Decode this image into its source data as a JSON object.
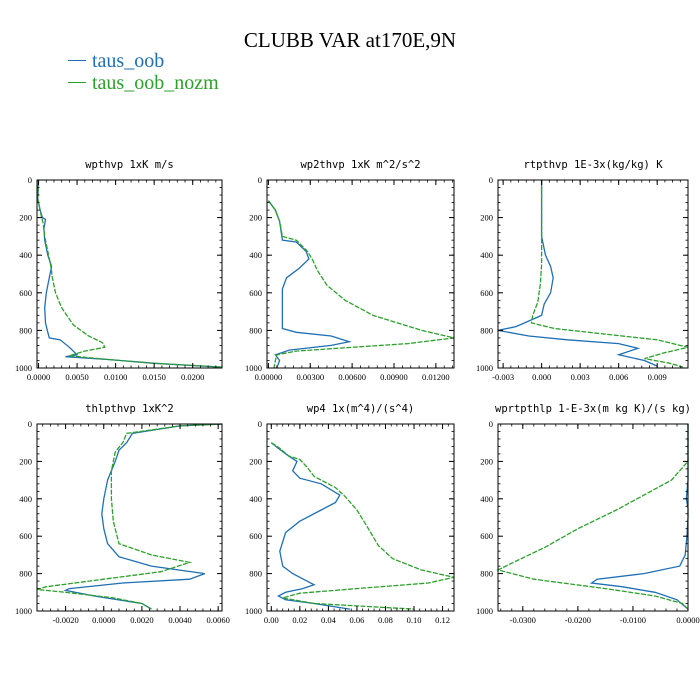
{
  "title": "CLUBB VAR at170E,9N",
  "legend": [
    {
      "label": "taus_oob",
      "color": "#1f6fb4"
    },
    {
      "label": "taus_oob_nozm",
      "color": "#2ca02c"
    }
  ],
  "chart_data": [
    {
      "type": "line",
      "title": "wpthvp   1xK m/s",
      "xlim": [
        -0.0002,
        0.0238
      ],
      "ylim": [
        1000,
        0
      ],
      "xticks": [
        "0.0000",
        "0.0050",
        "0.0100",
        "0.0150",
        "0.0200"
      ],
      "xtick_values": [
        0,
        0.005,
        0.01,
        0.015,
        0.02
      ],
      "yticks": [
        "0",
        "200",
        "400",
        "600",
        "800",
        "1000"
      ],
      "series": [
        {
          "name": "taus_oob",
          "points": [
            [
              0.0,
              0
            ],
            [
              -0.0001,
              100
            ],
            [
              0.0002,
              160
            ],
            [
              0.0005,
              200
            ],
            [
              0.0009,
              210
            ],
            [
              0.0007,
              260
            ],
            [
              0.0008,
              320
            ],
            [
              0.0012,
              400
            ],
            [
              0.0017,
              460
            ],
            [
              0.0014,
              520
            ],
            [
              0.001,
              600
            ],
            [
              0.0008,
              680
            ],
            [
              0.0009,
              760
            ],
            [
              0.0012,
              810
            ],
            [
              0.0014,
              840
            ],
            [
              0.0028,
              850
            ],
            [
              0.004,
              890
            ],
            [
              0.005,
              930
            ],
            [
              0.0035,
              940
            ],
            [
              0.009,
              955
            ],
            [
              0.015,
              975
            ],
            [
              0.0238,
              995
            ]
          ]
        },
        {
          "name": "taus_oob_nozm",
          "points": [
            [
              0.0,
              0
            ],
            [
              -0.0001,
              100
            ],
            [
              0.0002,
              160
            ],
            [
              0.0004,
              200
            ],
            [
              0.0006,
              230
            ],
            [
              0.0008,
              300
            ],
            [
              0.0013,
              400
            ],
            [
              0.0016,
              460
            ],
            [
              0.0018,
              520
            ],
            [
              0.0022,
              600
            ],
            [
              0.003,
              680
            ],
            [
              0.0045,
              770
            ],
            [
              0.0065,
              830
            ],
            [
              0.0083,
              865
            ],
            [
              0.0086,
              890
            ],
            [
              0.006,
              910
            ],
            [
              0.004,
              935
            ],
            [
              0.009,
              955
            ],
            [
              0.015,
              975
            ],
            [
              0.0238,
              995
            ]
          ]
        }
      ]
    },
    {
      "type": "line",
      "title": "wp2thvp   1xK m^2/s^2",
      "xlim": [
        -0.0001,
        0.0133
      ],
      "ylim": [
        1000,
        0
      ],
      "xticks": [
        "0.00000",
        "0.00300",
        "0.00600",
        "0.00900",
        "0.01200"
      ],
      "xtick_values": [
        0,
        0.003,
        0.006,
        0.009,
        0.012
      ],
      "yticks": [
        "0",
        "200",
        "400",
        "600",
        "800",
        "1000"
      ],
      "series": [
        {
          "name": "taus_oob",
          "points": [
            [
              0.0,
              110
            ],
            [
              0.0005,
              160
            ],
            [
              0.0008,
              220
            ],
            [
              0.001,
              320
            ],
            [
              0.002,
              330
            ],
            [
              0.0027,
              380
            ],
            [
              0.0029,
              420
            ],
            [
              0.0022,
              470
            ],
            [
              0.0013,
              520
            ],
            [
              0.001,
              580
            ],
            [
              0.001,
              700
            ],
            [
              0.001,
              790
            ],
            [
              0.002,
              810
            ],
            [
              0.0045,
              830
            ],
            [
              0.0058,
              860
            ],
            [
              0.0045,
              880
            ],
            [
              0.0015,
              905
            ],
            [
              0.0005,
              930
            ],
            [
              0.0008,
              960
            ],
            [
              0.0006,
              1000
            ]
          ]
        },
        {
          "name": "taus_oob_nozm",
          "points": [
            [
              0.0,
              110
            ],
            [
              0.0005,
              160
            ],
            [
              0.0008,
              220
            ],
            [
              0.001,
              300
            ],
            [
              0.002,
              320
            ],
            [
              0.0028,
              380
            ],
            [
              0.0032,
              430
            ],
            [
              0.0035,
              480
            ],
            [
              0.0042,
              560
            ],
            [
              0.0055,
              640
            ],
            [
              0.0075,
              720
            ],
            [
              0.011,
              800
            ],
            [
              0.0133,
              840
            ],
            [
              0.01,
              870
            ],
            [
              0.006,
              890
            ],
            [
              0.002,
              910
            ],
            [
              0.0006,
              930
            ],
            [
              0.0005,
              960
            ],
            [
              0.0004,
              1000
            ]
          ]
        }
      ]
    },
    {
      "type": "line",
      "title": "rtpthvp   1E-3x(kg/kg) K",
      "xlim": [
        -0.0034,
        0.0114
      ],
      "ylim": [
        1000,
        0
      ],
      "xticks": [
        "-0.003",
        "0.000",
        "0.003",
        "0.006",
        "0.009"
      ],
      "xtick_values": [
        -0.003,
        0,
        0.003,
        0.006,
        0.009
      ],
      "yticks": [
        "0",
        "200",
        "400",
        "600",
        "800",
        "1000"
      ],
      "series": [
        {
          "name": "taus_oob",
          "points": [
            [
              0.0,
              0
            ],
            [
              0.0,
              300
            ],
            [
              0.0003,
              400
            ],
            [
              0.0007,
              460
            ],
            [
              0.0009,
              520
            ],
            [
              0.0007,
              600
            ],
            [
              0.0002,
              660
            ],
            [
              0.0,
              720
            ],
            [
              -0.002,
              780
            ],
            [
              -0.0034,
              800
            ],
            [
              -0.001,
              830
            ],
            [
              0.002,
              850
            ],
            [
              0.006,
              870
            ],
            [
              0.0075,
              895
            ],
            [
              0.006,
              930
            ],
            [
              0.008,
              960
            ],
            [
              0.009,
              990
            ]
          ]
        },
        {
          "name": "taus_oob_nozm",
          "points": [
            [
              0.0,
              0
            ],
            [
              0.0,
              300
            ],
            [
              0.0,
              450
            ],
            [
              -0.0001,
              550
            ],
            [
              -0.0003,
              650
            ],
            [
              -0.0007,
              720
            ],
            [
              -0.0008,
              760
            ],
            [
              0.001,
              790
            ],
            [
              0.005,
              820
            ],
            [
              0.009,
              850
            ],
            [
              0.0114,
              890
            ],
            [
              0.0095,
              920
            ],
            [
              0.008,
              950
            ],
            [
              0.01,
              975
            ],
            [
              0.011,
              995
            ]
          ]
        }
      ]
    },
    {
      "type": "line",
      "title": "thlpthvp   1xK^2",
      "xlim": [
        -0.0035,
        0.0062
      ],
      "ylim": [
        1000,
        0
      ],
      "xticks": [
        "-0.0020",
        "0.0000",
        "0.0020",
        "0.0040",
        "0.0060"
      ],
      "xtick_values": [
        -0.002,
        0,
        0.002,
        0.004,
        0.006
      ],
      "yticks": [
        "0",
        "200",
        "400",
        "600",
        "800",
        "1000"
      ],
      "series": [
        {
          "name": "taus_oob",
          "points": [
            [
              0.0062,
              0
            ],
            [
              0.004,
              10
            ],
            [
              0.0015,
              50
            ],
            [
              0.0012,
              100
            ],
            [
              0.0008,
              140
            ],
            [
              0.0006,
              200
            ],
            [
              0.0002,
              300
            ],
            [
              0.0,
              400
            ],
            [
              -0.0001,
              480
            ],
            [
              0.0,
              560
            ],
            [
              0.0002,
              640
            ],
            [
              0.0008,
              710
            ],
            [
              0.0025,
              760
            ],
            [
              0.0053,
              800
            ],
            [
              0.0045,
              830
            ],
            [
              0.001,
              850
            ],
            [
              -0.0018,
              880
            ],
            [
              -0.002,
              890
            ],
            [
              -0.0005,
              920
            ],
            [
              0.002,
              960
            ],
            [
              0.0025,
              990
            ]
          ]
        },
        {
          "name": "taus_oob_nozm",
          "points": [
            [
              0.0062,
              0
            ],
            [
              0.004,
              10
            ],
            [
              0.0012,
              50
            ],
            [
              0.001,
              100
            ],
            [
              0.0006,
              150
            ],
            [
              0.0004,
              250
            ],
            [
              0.0004,
              400
            ],
            [
              0.0005,
              520
            ],
            [
              0.0008,
              640
            ],
            [
              0.0025,
              700
            ],
            [
              0.0045,
              740
            ],
            [
              0.003,
              790
            ],
            [
              0.0,
              830
            ],
            [
              -0.003,
              870
            ],
            [
              -0.0035,
              885
            ],
            [
              -0.002,
              900
            ],
            [
              0.0005,
              930
            ],
            [
              0.002,
              960
            ],
            [
              0.0025,
              990
            ]
          ]
        }
      ]
    },
    {
      "type": "line",
      "title": "wp4   1x(m^4)/(s^4)",
      "xlim": [
        -0.003,
        0.128
      ],
      "ylim": [
        1000,
        0
      ],
      "xticks": [
        "0.00",
        "0.02",
        "0.04",
        "0.06",
        "0.08",
        "0.10",
        "0.12"
      ],
      "xtick_values": [
        0,
        0.02,
        0.04,
        0.06,
        0.08,
        0.1,
        0.12
      ],
      "yticks": [
        "0",
        "200",
        "400",
        "600",
        "800",
        "1000"
      ],
      "series": [
        {
          "name": "taus_oob",
          "points": [
            [
              0.0,
              100
            ],
            [
              0.005,
              130
            ],
            [
              0.012,
              170
            ],
            [
              0.018,
              200
            ],
            [
              0.015,
              250
            ],
            [
              0.02,
              290
            ],
            [
              0.035,
              320
            ],
            [
              0.048,
              380
            ],
            [
              0.045,
              420
            ],
            [
              0.035,
              460
            ],
            [
              0.02,
              520
            ],
            [
              0.01,
              580
            ],
            [
              0.006,
              680
            ],
            [
              0.008,
              760
            ],
            [
              0.015,
              800
            ],
            [
              0.025,
              840
            ],
            [
              0.03,
              860
            ],
            [
              0.022,
              880
            ],
            [
              0.01,
              900
            ],
            [
              0.005,
              920
            ],
            [
              0.01,
              940
            ],
            [
              0.03,
              960
            ],
            [
              0.055,
              990
            ]
          ]
        },
        {
          "name": "taus_oob_nozm",
          "points": [
            [
              0.0,
              100
            ],
            [
              0.006,
              130
            ],
            [
              0.012,
              170
            ],
            [
              0.02,
              190
            ],
            [
              0.025,
              230
            ],
            [
              0.03,
              280
            ],
            [
              0.045,
              340
            ],
            [
              0.052,
              390
            ],
            [
              0.06,
              460
            ],
            [
              0.068,
              560
            ],
            [
              0.075,
              650
            ],
            [
              0.085,
              720
            ],
            [
              0.105,
              780
            ],
            [
              0.128,
              820
            ],
            [
              0.11,
              850
            ],
            [
              0.06,
              880
            ],
            [
              0.02,
              905
            ],
            [
              0.008,
              930
            ],
            [
              0.03,
              960
            ],
            [
              0.1,
              990
            ]
          ]
        }
      ]
    },
    {
      "type": "line",
      "title": "wprtpthlp   1-E-3x(m kg K)/(s kg)",
      "xlim": [
        -0.0345,
        0.0
      ],
      "ylim": [
        1000,
        0
      ],
      "xticks": [
        "-0.0300",
        "-0.0200",
        "-0.0100",
        "0.0000"
      ],
      "xtick_values": [
        -0.03,
        -0.02,
        -0.01,
        0
      ],
      "yticks": [
        "0",
        "200",
        "400",
        "600",
        "800",
        "1000"
      ],
      "series": [
        {
          "name": "taus_oob",
          "points": [
            [
              0.0,
              0
            ],
            [
              0.0,
              300
            ],
            [
              -0.0003,
              400
            ],
            [
              0.0,
              450
            ],
            [
              0.0,
              500
            ],
            [
              -0.0002,
              600
            ],
            [
              -0.0005,
              700
            ],
            [
              -0.0015,
              760
            ],
            [
              -0.008,
              800
            ],
            [
              -0.0165,
              830
            ],
            [
              -0.0175,
              850
            ],
            [
              -0.012,
              870
            ],
            [
              -0.006,
              900
            ],
            [
              -0.002,
              940
            ],
            [
              0.0,
              990
            ]
          ]
        },
        {
          "name": "taus_oob_nozm",
          "points": [
            [
              0.0,
              0
            ],
            [
              0.0,
              200
            ],
            [
              -0.003,
              300
            ],
            [
              -0.008,
              380
            ],
            [
              -0.013,
              460
            ],
            [
              -0.02,
              560
            ],
            [
              -0.026,
              660
            ],
            [
              -0.031,
              730
            ],
            [
              -0.0345,
              780
            ],
            [
              -0.028,
              830
            ],
            [
              -0.015,
              880
            ],
            [
              -0.006,
              920
            ],
            [
              -0.001,
              960
            ],
            [
              0.0,
              990
            ]
          ]
        }
      ]
    }
  ]
}
